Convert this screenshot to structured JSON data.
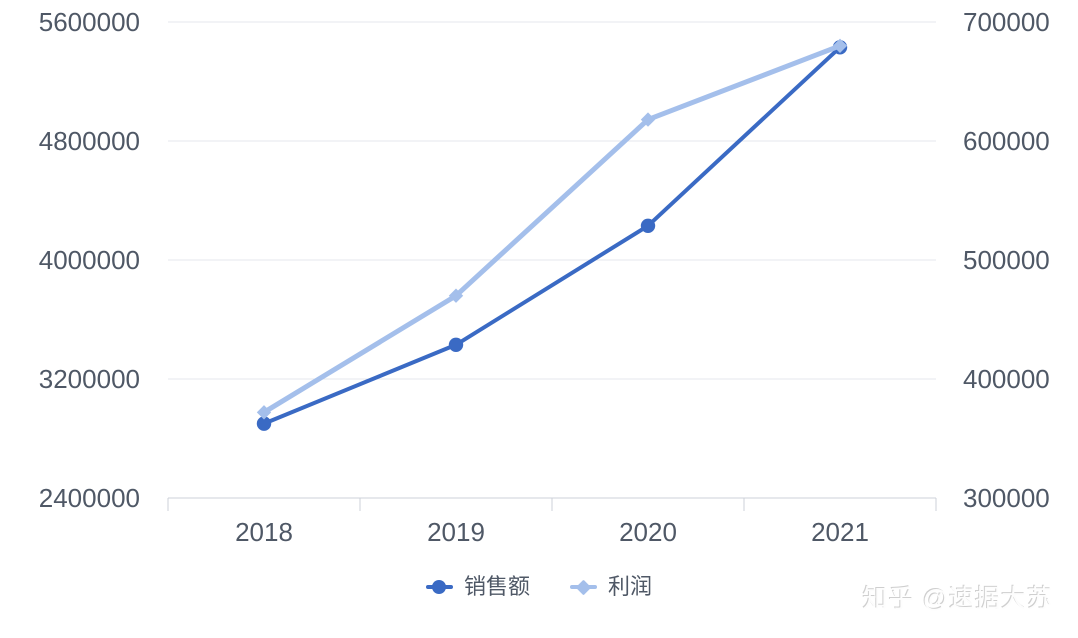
{
  "watermark": {
    "text": "知乎 @速据大苏"
  },
  "legend": {
    "items": [
      {
        "label": "销售额",
        "marker": "circle",
        "color": "#3A6AC4"
      },
      {
        "label": "利润",
        "marker": "diamond",
        "color": "#A4BFEB"
      }
    ]
  },
  "chart_data": {
    "type": "line",
    "categories": [
      "2018",
      "2019",
      "2020",
      "2021"
    ],
    "series": [
      {
        "name": "销售额",
        "yaxis": "left",
        "marker": "circle",
        "color": "#3A6AC4",
        "line_width": 4,
        "values": [
          2900000,
          3430000,
          4230000,
          5430000
        ]
      },
      {
        "name": "利润",
        "yaxis": "right",
        "marker": "diamond",
        "color": "#A4BFEB",
        "line_width": 5,
        "values": [
          372000,
          470000,
          618000,
          680000
        ]
      }
    ],
    "left_axis": {
      "min": 2400000,
      "max": 5600000,
      "tick_step": 800000,
      "tick_labels": [
        "2400000",
        "3200000",
        "4000000",
        "4800000",
        "5600000"
      ]
    },
    "right_axis": {
      "min": 300000,
      "max": 700000,
      "tick_step": 100000,
      "tick_labels": [
        "300000",
        "400000",
        "500000",
        "600000",
        "700000"
      ]
    },
    "grid": true,
    "legend_position": "bottom",
    "colors": {
      "grid": "#E4E7EC",
      "axis": "#CCD1D9",
      "label": "#4F5866",
      "background": "#FFFFFF"
    }
  }
}
